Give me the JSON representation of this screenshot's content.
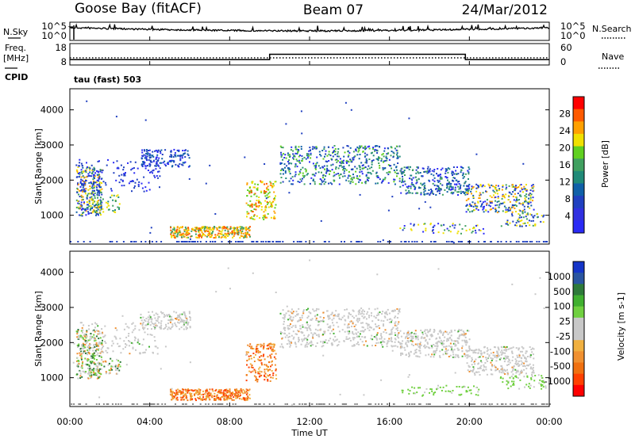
{
  "header": {
    "station": "Goose Bay (fitACF)",
    "beam": "Beam 07",
    "date": "24/Mar/2012",
    "mode": "tau (fast) 503"
  },
  "side_labels": {
    "nsky": "N.Sky",
    "nsearch": "N.Search",
    "freq": "Freq.",
    "freq_unit": "[MHz]",
    "nave": "Nave",
    "cpid": "CPID"
  },
  "chart_data": [
    {
      "type": "line",
      "name": "N.Sky / N.Search",
      "left_axis_ticks": [
        "10^5",
        "10^0"
      ],
      "right_axis_ticks": [
        "10^5",
        "10^0"
      ],
      "xlim": [
        "00:00",
        "24:00"
      ],
      "note": "noisy line near top of range throughout the day"
    },
    {
      "type": "line",
      "series": [
        {
          "name": "Freq.",
          "x_hours": [
            0,
            10,
            10,
            19.8,
            19.8,
            24
          ],
          "values": [
            10.5,
            10.5,
            13,
            13,
            10.5,
            10.5
          ]
        },
        {
          "name": "Nave",
          "x_hours": [
            0,
            24
          ],
          "values": [
            8,
            8
          ],
          "style": "dotted"
        }
      ],
      "left_axis_ticks": [
        "18",
        "8"
      ],
      "right_axis_ticks": [
        "60",
        "0"
      ]
    },
    {
      "type": "heatmap",
      "name": "power",
      "ylabel": "Slant Range [km]",
      "ylim": [
        180,
        4600
      ],
      "y_ticks": [
        1000,
        2000,
        3000,
        4000
      ],
      "colorbar_title": "Power [dB]",
      "colorbar_ticks": [
        "28",
        "24",
        "20",
        "16",
        "12",
        "8",
        "4"
      ],
      "colorbar_colors": [
        "#ff0000",
        "#ff5a00",
        "#ffa000",
        "#f0e000",
        "#60d020",
        "#40a060",
        "#208a78",
        "#1060a8",
        "#2040c0",
        "#3030e0",
        "#2a2af5"
      ]
    },
    {
      "type": "heatmap",
      "name": "velocity",
      "ylabel": "Slant Range [km]",
      "ylim": [
        180,
        4600
      ],
      "y_ticks": [
        1000,
        2000,
        3000,
        4000
      ],
      "colorbar_title": "Velocity [m s-1]",
      "colorbar_ticks": [
        "1000",
        "500",
        "100",
        "25",
        "-25",
        "-100",
        "-500",
        "-1000"
      ],
      "colorbar_colors": [
        "#1535c8",
        "#2a55a0",
        "#2e7a3a",
        "#40b030",
        "#70d040",
        "#c8c8c8",
        "#c8c8c8",
        "#f0b040",
        "#f09030",
        "#f07010",
        "#ff4000",
        "#ff0000"
      ]
    }
  ],
  "x_axis": {
    "ticks": [
      "00:00",
      "04:00",
      "08:00",
      "12:00",
      "16:00",
      "20:00",
      "00:00"
    ],
    "label": "Time UT"
  }
}
